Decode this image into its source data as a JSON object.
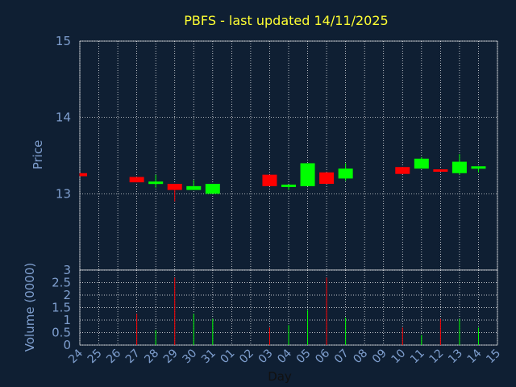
{
  "chart_data": {
    "title": "PBFS - last updated 14/11/2025",
    "colors": {
      "up": "#00ff00",
      "down": "#ff0000",
      "background": "#0f1f33",
      "text": "#7f9fcf",
      "title": "#ffff33",
      "grid": "#ffffff"
    },
    "price": {
      "type": "candlestick",
      "ylabel": "Price",
      "ylim": [
        12,
        15
      ],
      "yticks": [
        "13",
        "14",
        "15"
      ],
      "grid": true
    },
    "volume": {
      "type": "bar",
      "ylabel": "Volume (0000)",
      "ylim": [
        0,
        3
      ],
      "yticks": [
        "0",
        "0.5",
        "1",
        "1.5",
        "2",
        "2.5",
        "3"
      ],
      "grid": true
    },
    "xlabel": "Day",
    "x_ticks": [
      "24",
      "25",
      "26",
      "27",
      "28",
      "29",
      "30",
      "31",
      "01",
      "02",
      "03",
      "04",
      "05",
      "06",
      "07",
      "08",
      "09",
      "10",
      "11",
      "12",
      "13",
      "14",
      "15"
    ],
    "candles": [
      {
        "day": "24",
        "open": 13.27,
        "close": 13.23,
        "high": 13.27,
        "low": 13.23,
        "volume": 0
      },
      {
        "day": "27",
        "open": 13.22,
        "close": 13.15,
        "high": 13.22,
        "low": 13.15,
        "volume": 1.25
      },
      {
        "day": "28",
        "open": 13.15,
        "close": 13.16,
        "high": 13.25,
        "low": 13.08,
        "volume": 0.6
      },
      {
        "day": "29",
        "open": 13.13,
        "close": 13.05,
        "high": 13.13,
        "low": 12.9,
        "volume": 2.7
      },
      {
        "day": "30",
        "open": 13.05,
        "close": 13.1,
        "high": 13.18,
        "low": 13.05,
        "volume": 1.25
      },
      {
        "day": "31",
        "open": 13.0,
        "close": 13.13,
        "high": 13.13,
        "low": 13.0,
        "volume": 1.05
      },
      {
        "day": "03",
        "open": 13.25,
        "close": 13.1,
        "high": 13.25,
        "low": 13.1,
        "volume": 0.7
      },
      {
        "day": "04",
        "open": 13.1,
        "close": 13.12,
        "high": 13.12,
        "low": 13.05,
        "volume": 0.8
      },
      {
        "day": "05",
        "open": 13.1,
        "close": 13.4,
        "high": 13.4,
        "low": 13.1,
        "volume": 1.4
      },
      {
        "day": "06",
        "open": 13.28,
        "close": 13.13,
        "high": 13.28,
        "low": 13.13,
        "volume": 2.7
      },
      {
        "day": "07",
        "open": 13.2,
        "close": 13.33,
        "high": 13.4,
        "low": 13.17,
        "volume": 1.1
      },
      {
        "day": "10",
        "open": 13.35,
        "close": 13.26,
        "high": 13.35,
        "low": 13.26,
        "volume": 0.7
      },
      {
        "day": "11",
        "open": 13.33,
        "close": 13.46,
        "high": 13.48,
        "low": 13.33,
        "volume": 0.4
      },
      {
        "day": "12",
        "open": 13.32,
        "close": 13.29,
        "high": 13.32,
        "low": 13.29,
        "volume": 1.05
      },
      {
        "day": "13",
        "open": 13.27,
        "close": 13.42,
        "high": 13.52,
        "low": 13.25,
        "volume": 1.05
      },
      {
        "day": "14",
        "open": 13.33,
        "close": 13.36,
        "high": 13.36,
        "low": 13.28,
        "volume": 0.7
      }
    ]
  }
}
